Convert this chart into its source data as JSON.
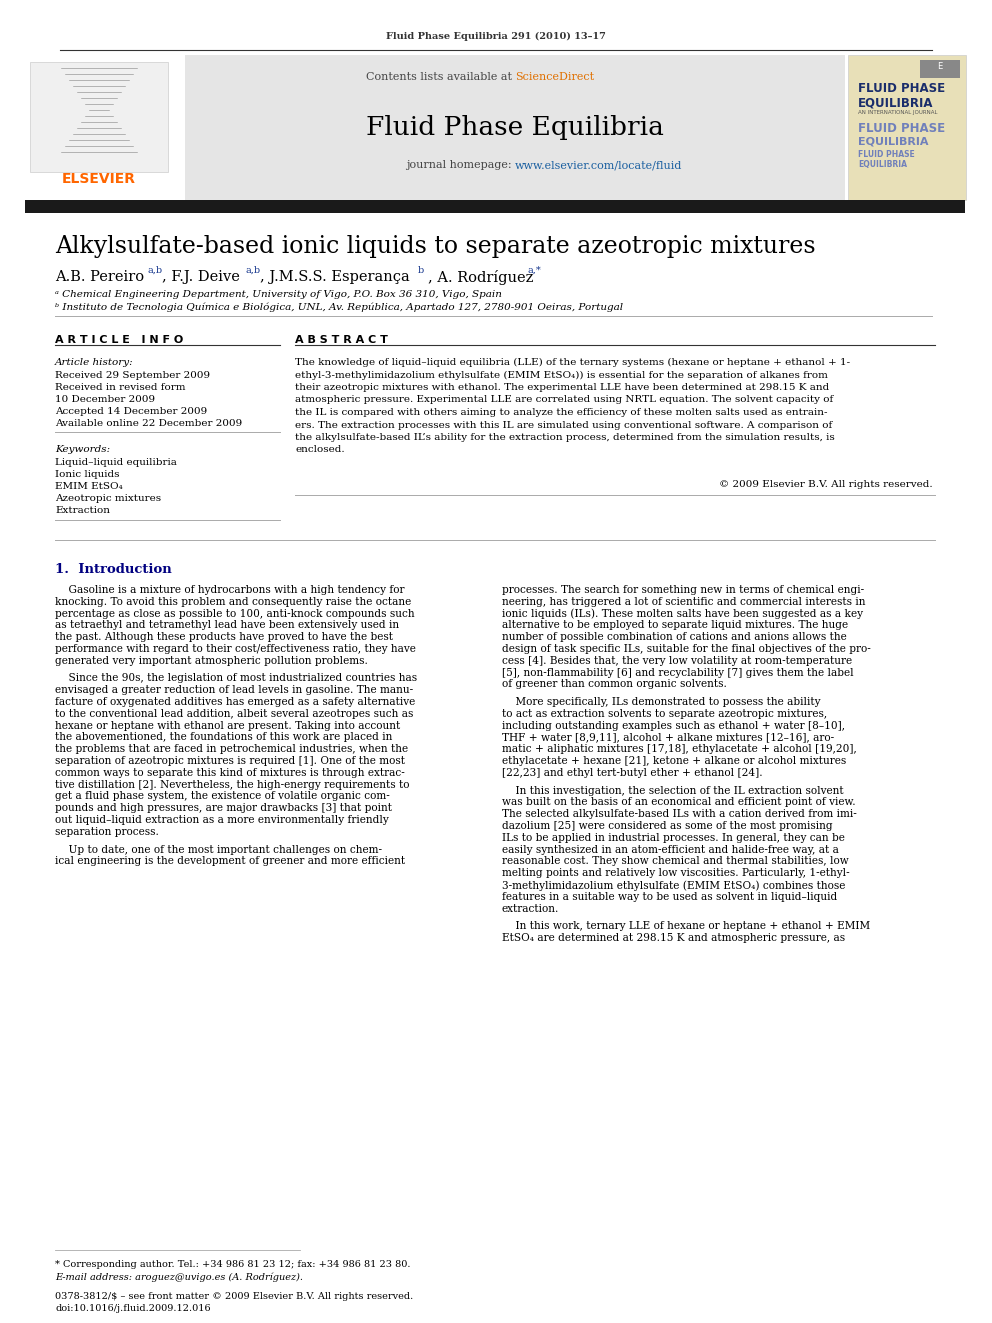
{
  "journal_line": "Fluid Phase Equilibria 291 (2010) 13–17",
  "contents_line": "Contents lists available at ",
  "sciencedirect_text": "ScienceDirect",
  "journal_name": "Fluid Phase Equilibria",
  "journal_url_prefix": "journal homepage: ",
  "journal_url": "www.elsevier.com/locate/fluid",
  "title": "Alkylsulfate-based ionic liquids to separate azeotropic mixtures",
  "author1": "A.B. Pereiro",
  "author1_super": "a,b",
  "author2": "F.J. Deive",
  "author2_super": "a,b",
  "author3": "J.M.S.S. Esperança",
  "author3_super": "b",
  "author4": "A. Rodríguez",
  "author4_super": "a,⁎",
  "affil_a": "ᵃ Chemical Engineering Department, University of Vigo, P.O. Box 36 310, Vigo, Spain",
  "affil_b": "ᵇ Instituto de Tecnologia Química e Biológica, UNL, Av. República, Apartado 127, 2780-901 Oeiras, Portugal",
  "article_info_header": "A R T I C L E   I N F O",
  "abstract_header": "A B S T R A C T",
  "article_history_label": "Article history:",
  "received": "Received 29 September 2009",
  "received_revised": "Received in revised form",
  "received_revised_date": "10 December 2009",
  "accepted": "Accepted 14 December 2009",
  "available": "Available online 22 December 2009",
  "keywords_label": "Keywords:",
  "kw1": "Liquid–liquid equilibria",
  "kw2": "Ionic liquids",
  "kw3": "EMIM EtSO₄",
  "kw4": "Azeotropic mixtures",
  "kw5": "Extraction",
  "abstract_lines": [
    "The knowledge of liquid–liquid equilibria (LLE) of the ternary systems (hexane or heptane + ethanol + 1-",
    "ethyl-3-methylimidazolium ethylsulfate (EMIM EtSO₄)) is essential for the separation of alkanes from",
    "their azeotropic mixtures with ethanol. The experimental LLE have been determined at 298.15 K and",
    "atmospheric pressure. Experimental LLE are correlated using NRTL equation. The solvent capacity of",
    "the IL is compared with others aiming to analyze the efficiency of these molten salts used as entrain-",
    "ers. The extraction processes with this IL are simulated using conventional software. A comparison of",
    "the alkylsulfate-based IL’s ability for the extraction process, determined from the simulation results, is",
    "enclosed."
  ],
  "copyright": "© 2009 Elsevier B.V. All rights reserved.",
  "section1_title": "1.  Introduction",
  "body_col1_lines": [
    "    Gasoline is a mixture of hydrocarbons with a high tendency for",
    "knocking. To avoid this problem and consequently raise the octane",
    "percentage as close as possible to 100, anti-knock compounds such",
    "as tetraethyl and tetramethyl lead have been extensively used in",
    "the past. Although these products have proved to have the best",
    "performance with regard to their cost/effectiveness ratio, they have",
    "generated very important atmospheric pollution problems.",
    "",
    "    Since the 90s, the legislation of most industrialized countries has",
    "envisaged a greater reduction of lead levels in gasoline. The manu-",
    "facture of oxygenated additives has emerged as a safety alternative",
    "to the conventional lead addition, albeit several azeotropes such as",
    "hexane or heptane with ethanol are present. Taking into account",
    "the abovementioned, the foundations of this work are placed in",
    "the problems that are faced in petrochemical industries, when the",
    "separation of azeotropic mixtures is required [1]. One of the most",
    "common ways to separate this kind of mixtures is through extrac-",
    "tive distillation [2]. Nevertheless, the high-energy requirements to",
    "get a fluid phase system, the existence of volatile organic com-",
    "pounds and high pressures, are major drawbacks [3] that point",
    "out liquid–liquid extraction as a more environmentally friendly",
    "separation process.",
    "",
    "    Up to date, one of the most important challenges on chem-",
    "ical engineering is the development of greener and more efficient"
  ],
  "body_col2_lines": [
    "processes. The search for something new in terms of chemical engi-",
    "neering, has triggered a lot of scientific and commercial interests in",
    "ionic liquids (ILs). These molten salts have been suggested as a key",
    "alternative to be employed to separate liquid mixtures. The huge",
    "number of possible combination of cations and anions allows the",
    "design of task specific ILs, suitable for the final objectives of the pro-",
    "cess [4]. Besides that, the very low volatility at room-temperature",
    "[5], non-flammability [6] and recyclability [7] gives them the label",
    "of greener than common organic solvents.",
    "",
    "    More specifically, ILs demonstrated to possess the ability",
    "to act as extraction solvents to separate azeotropic mixtures,",
    "including outstanding examples such as ethanol + water [8–10],",
    "THF + water [8,9,11], alcohol + alkane mixtures [12–16], aro-",
    "matic + aliphatic mixtures [17,18], ethylacetate + alcohol [19,20],",
    "ethylacetate + hexane [21], ketone + alkane or alcohol mixtures",
    "[22,23] and ethyl tert-butyl ether + ethanol [24].",
    "",
    "    In this investigation, the selection of the IL extraction solvent",
    "was built on the basis of an economical and efficient point of view.",
    "The selected alkylsulfate-based ILs with a cation derived from imi-",
    "dazolium [25] were considered as some of the most promising",
    "ILs to be applied in industrial processes. In general, they can be",
    "easily synthesized in an atom-efficient and halide-free way, at a",
    "reasonable cost. They show chemical and thermal stabilities, low",
    "melting points and relatively low viscosities. Particularly, 1-ethyl-",
    "3-methylimidazolium ethylsulfate (EMIM EtSO₄) combines those",
    "features in a suitable way to be used as solvent in liquid–liquid",
    "extraction.",
    "",
    "    In this work, ternary LLE of hexane or heptane + ethanol + EMIM",
    "EtSO₄ are determined at 298.15 K and atmospheric pressure, as"
  ],
  "footer_star": "* Corresponding author. Tel.: +34 986 81 23 12; fax: +34 986 81 23 80.",
  "footer_email": "E-mail address: aroguez@uvigo.es (A. Rodríguez).",
  "footer_issn": "0378-3812/$ – see front matter © 2009 Elsevier B.V. All rights reserved.",
  "footer_doi": "doi:10.1016/j.fluid.2009.12.016",
  "bg_color": "#ffffff",
  "header_bg": "#e5e5e5",
  "cover_bg": "#e8e0b8",
  "elsevier_color": "#ff6600",
  "sciencedirect_color": "#e07000",
  "url_color": "#1a5fa0",
  "section_color": "#000080",
  "dark_bar_color": "#1a1a1a",
  "line_color": "#aaaaaa",
  "dark_line_color": "#333333",
  "cover_title_color": "#1a2d6b",
  "cover_subtitle_color": "#7080bb"
}
